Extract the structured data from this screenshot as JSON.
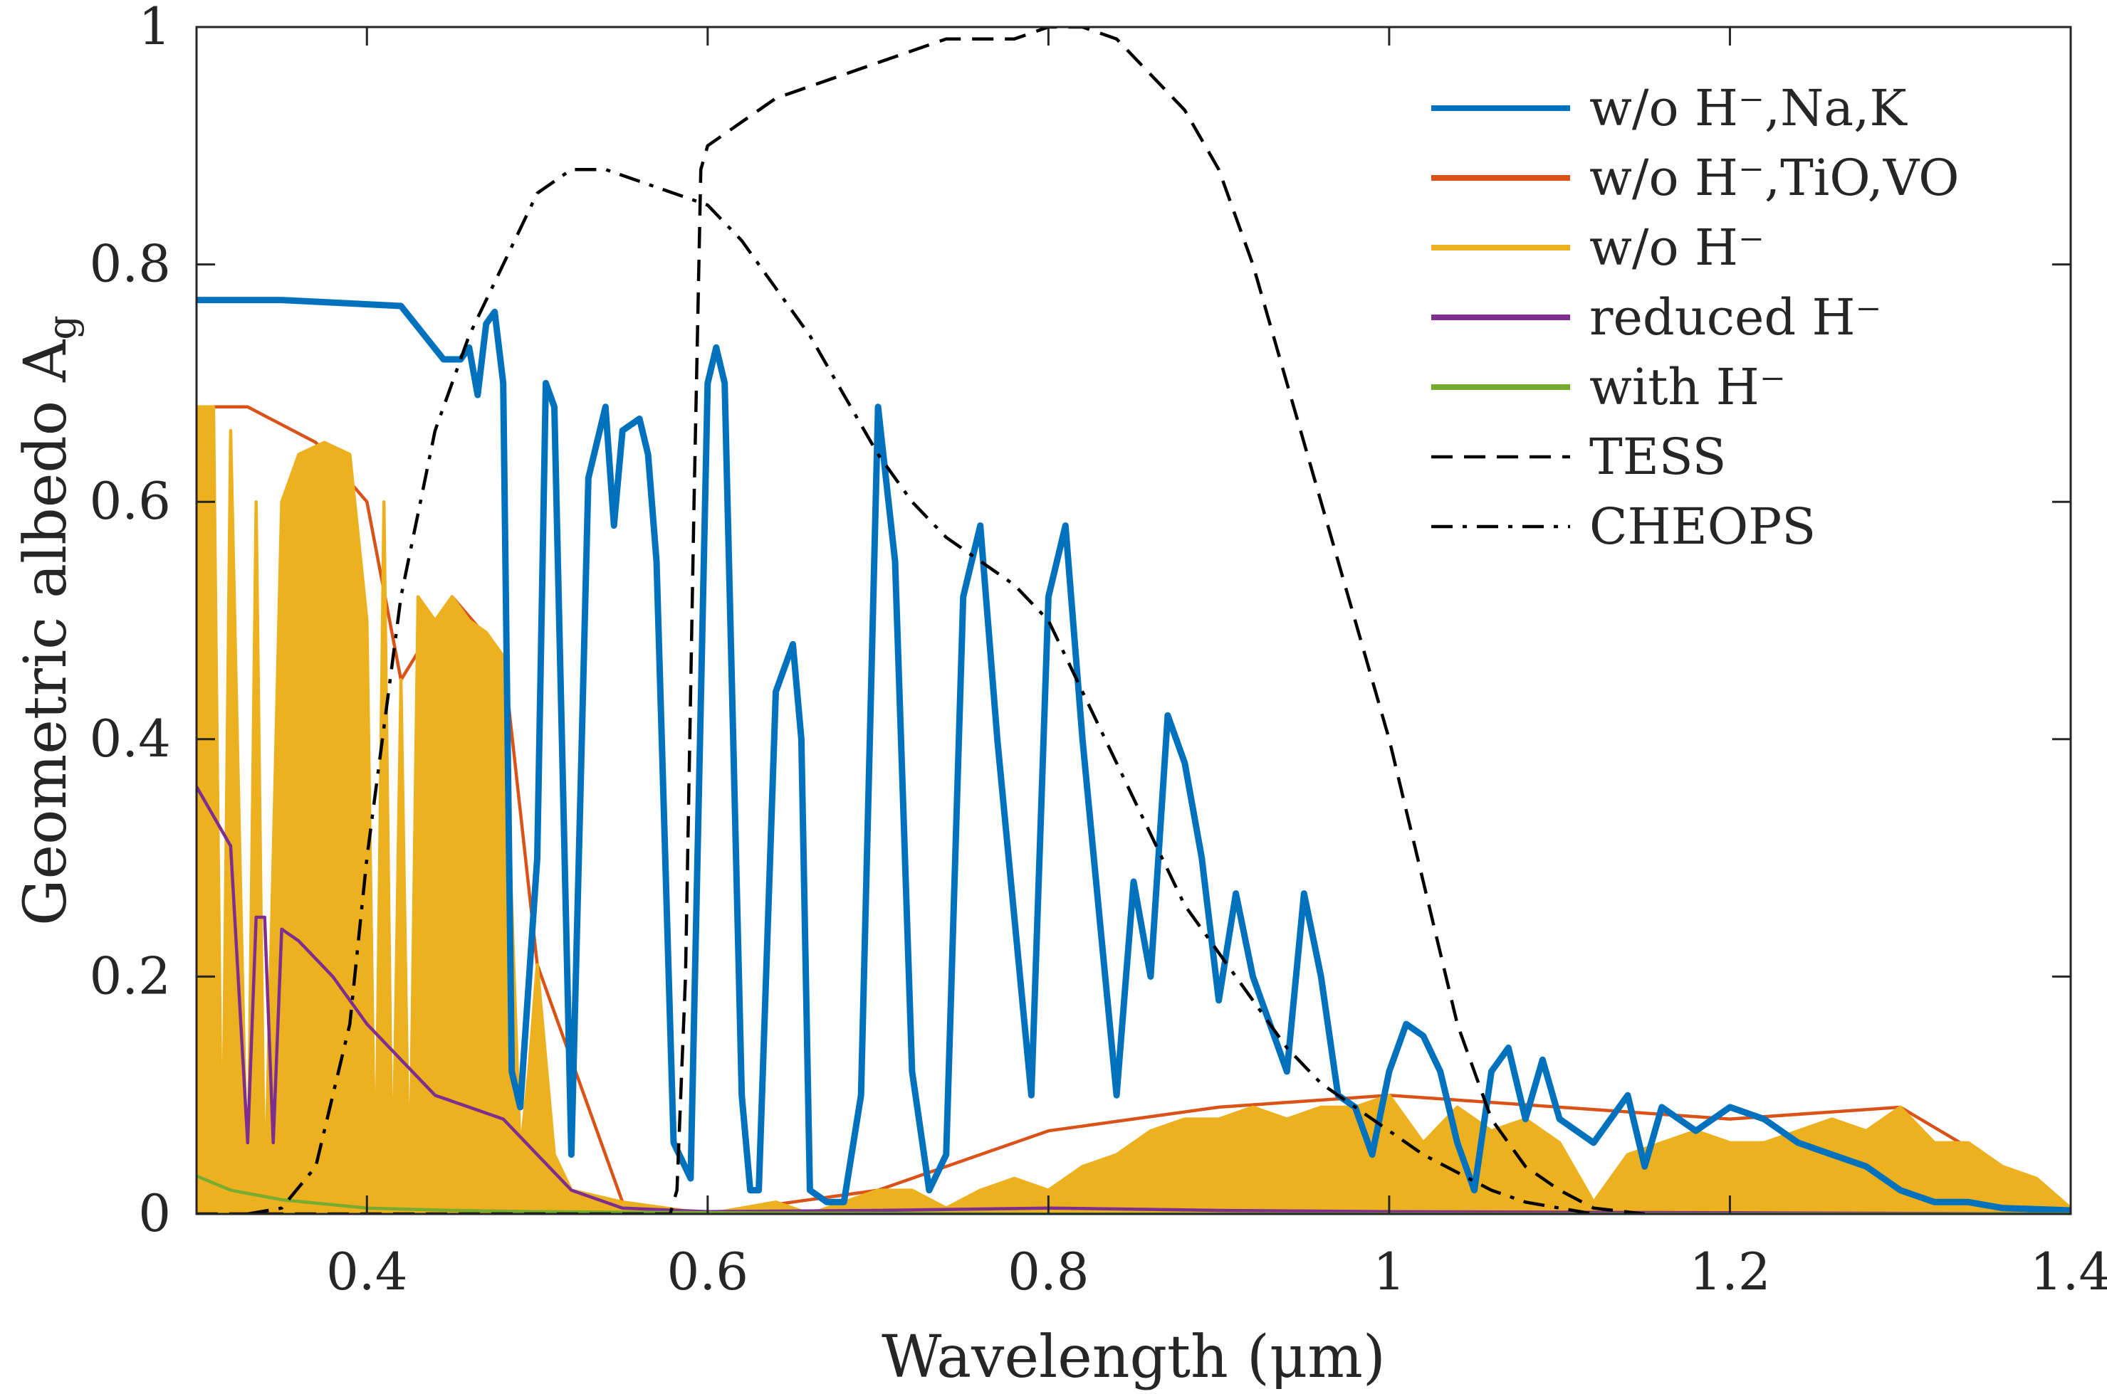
{
  "chart_data": {
    "type": "line",
    "title": "",
    "xlabel": "Wavelength (μm)",
    "ylabel": "Geometric albedo A",
    "ylabel_subscript": "g",
    "xlim": [
      0.3,
      1.4
    ],
    "ylim": [
      0,
      1
    ],
    "xticks": [
      0.4,
      0.6,
      0.8,
      1.0,
      1.2,
      1.4
    ],
    "xtick_labels": [
      "0.4",
      "0.6",
      "0.8",
      "1",
      "1.2",
      "1.4"
    ],
    "yticks": [
      0,
      0.2,
      0.4,
      0.6,
      0.8,
      1.0
    ],
    "ytick_labels": [
      "0",
      "0.2",
      "0.4",
      "0.6",
      "0.8",
      "1"
    ],
    "legend_position": "top-right",
    "series": [
      {
        "name": "w/o H⁻,Na,K",
        "color": "#0072BD",
        "style": "solid",
        "note": "dense molecular absorption forest; key peaks and troughs",
        "x": [
          0.3,
          0.35,
          0.42,
          0.445,
          0.455,
          0.46,
          0.465,
          0.47,
          0.475,
          0.48,
          0.485,
          0.49,
          0.5,
          0.505,
          0.51,
          0.52,
          0.53,
          0.54,
          0.545,
          0.55,
          0.56,
          0.565,
          0.57,
          0.58,
          0.59,
          0.6,
          0.605,
          0.61,
          0.62,
          0.625,
          0.63,
          0.64,
          0.65,
          0.655,
          0.66,
          0.67,
          0.68,
          0.69,
          0.7,
          0.71,
          0.72,
          0.73,
          0.74,
          0.75,
          0.76,
          0.77,
          0.78,
          0.79,
          0.8,
          0.81,
          0.82,
          0.83,
          0.84,
          0.85,
          0.86,
          0.87,
          0.88,
          0.89,
          0.9,
          0.91,
          0.92,
          0.93,
          0.94,
          0.95,
          0.96,
          0.97,
          0.98,
          0.99,
          1.0,
          1.01,
          1.02,
          1.03,
          1.04,
          1.05,
          1.06,
          1.07,
          1.08,
          1.09,
          1.1,
          1.12,
          1.14,
          1.15,
          1.16,
          1.18,
          1.2,
          1.22,
          1.24,
          1.26,
          1.28,
          1.3,
          1.32,
          1.34,
          1.36,
          1.38,
          1.4
        ],
        "y": [
          0.77,
          0.77,
          0.765,
          0.72,
          0.72,
          0.73,
          0.69,
          0.75,
          0.76,
          0.7,
          0.12,
          0.09,
          0.3,
          0.7,
          0.68,
          0.05,
          0.62,
          0.68,
          0.58,
          0.66,
          0.67,
          0.64,
          0.55,
          0.06,
          0.03,
          0.7,
          0.73,
          0.7,
          0.1,
          0.02,
          0.02,
          0.44,
          0.48,
          0.4,
          0.02,
          0.01,
          0.01,
          0.1,
          0.68,
          0.55,
          0.12,
          0.02,
          0.05,
          0.52,
          0.58,
          0.4,
          0.25,
          0.1,
          0.52,
          0.58,
          0.4,
          0.25,
          0.1,
          0.28,
          0.2,
          0.42,
          0.38,
          0.3,
          0.18,
          0.27,
          0.2,
          0.16,
          0.12,
          0.27,
          0.2,
          0.1,
          0.09,
          0.05,
          0.12,
          0.16,
          0.15,
          0.12,
          0.06,
          0.02,
          0.12,
          0.14,
          0.08,
          0.13,
          0.08,
          0.06,
          0.1,
          0.04,
          0.09,
          0.07,
          0.09,
          0.08,
          0.06,
          0.05,
          0.04,
          0.02,
          0.01,
          0.01,
          0.005,
          0.004,
          0.003
        ]
      },
      {
        "name": "w/o H⁻,TiO,VO",
        "color": "#D95319",
        "style": "solid",
        "note": "nearly identical to w/o H⁻ (drawn underneath)",
        "x": [
          0.3,
          0.33,
          0.37,
          0.4,
          0.42,
          0.45,
          0.48,
          0.5,
          0.55,
          0.6,
          0.7,
          0.8,
          0.9,
          1.0,
          1.1,
          1.2,
          1.3,
          1.4
        ],
        "y": [
          0.68,
          0.68,
          0.65,
          0.6,
          0.45,
          0.52,
          0.47,
          0.21,
          0.01,
          0.0,
          0.02,
          0.07,
          0.09,
          0.1,
          0.09,
          0.08,
          0.09,
          0.005
        ]
      },
      {
        "name": "w/o H⁻",
        "color": "#EDB120",
        "style": "solid",
        "x": [
          0.3,
          0.31,
          0.315,
          0.32,
          0.33,
          0.335,
          0.34,
          0.35,
          0.36,
          0.375,
          0.39,
          0.4,
          0.405,
          0.41,
          0.415,
          0.42,
          0.425,
          0.43,
          0.44,
          0.45,
          0.46,
          0.47,
          0.48,
          0.49,
          0.495,
          0.5,
          0.51,
          0.52,
          0.55,
          0.6,
          0.62,
          0.64,
          0.66,
          0.7,
          0.72,
          0.74,
          0.76,
          0.78,
          0.8,
          0.82,
          0.84,
          0.86,
          0.88,
          0.9,
          0.92,
          0.94,
          0.96,
          0.98,
          1.0,
          1.02,
          1.04,
          1.06,
          1.08,
          1.1,
          1.12,
          1.14,
          1.16,
          1.18,
          1.2,
          1.22,
          1.24,
          1.26,
          1.28,
          1.3,
          1.32,
          1.34,
          1.36,
          1.38,
          1.4
        ],
        "y": [
          0.68,
          0.68,
          0.0,
          0.66,
          0.0,
          0.6,
          0.0,
          0.6,
          0.64,
          0.65,
          0.64,
          0.5,
          0.0,
          0.6,
          0.0,
          0.45,
          0.0,
          0.52,
          0.5,
          0.52,
          0.5,
          0.49,
          0.47,
          0.05,
          0.12,
          0.21,
          0.05,
          0.02,
          0.01,
          0.0,
          0.005,
          0.01,
          0.0,
          0.02,
          0.02,
          0.005,
          0.02,
          0.03,
          0.02,
          0.04,
          0.05,
          0.07,
          0.08,
          0.08,
          0.09,
          0.08,
          0.09,
          0.09,
          0.1,
          0.06,
          0.09,
          0.07,
          0.08,
          0.06,
          0.01,
          0.05,
          0.06,
          0.07,
          0.06,
          0.06,
          0.07,
          0.08,
          0.07,
          0.09,
          0.06,
          0.06,
          0.04,
          0.03,
          0.005
        ]
      },
      {
        "name": "reduced H⁻",
        "color": "#7E2F8E",
        "style": "solid",
        "x": [
          0.3,
          0.32,
          0.33,
          0.335,
          0.34,
          0.345,
          0.35,
          0.36,
          0.38,
          0.4,
          0.42,
          0.44,
          0.46,
          0.48,
          0.5,
          0.52,
          0.55,
          0.6,
          0.7,
          0.8,
          0.9,
          1.0,
          1.2,
          1.4
        ],
        "y": [
          0.36,
          0.31,
          0.06,
          0.25,
          0.25,
          0.06,
          0.24,
          0.23,
          0.2,
          0.16,
          0.13,
          0.1,
          0.09,
          0.08,
          0.05,
          0.02,
          0.005,
          0.002,
          0.003,
          0.005,
          0.003,
          0.002,
          0.001,
          0.0
        ]
      },
      {
        "name": "with H⁻",
        "color": "#77AC30",
        "style": "solid",
        "x": [
          0.3,
          0.32,
          0.35,
          0.4,
          0.45,
          0.5,
          0.6,
          0.8,
          1.0,
          1.2,
          1.4
        ],
        "y": [
          0.032,
          0.02,
          0.012,
          0.005,
          0.003,
          0.002,
          0.001,
          0.0,
          0.0,
          0.0,
          0.0
        ]
      },
      {
        "name": "TESS",
        "color": "#000000",
        "style": "dashed",
        "x": [
          0.3,
          0.32,
          0.55,
          0.578,
          0.582,
          0.587,
          0.592,
          0.596,
          0.6,
          0.62,
          0.64,
          0.66,
          0.68,
          0.7,
          0.72,
          0.74,
          0.76,
          0.78,
          0.8,
          0.82,
          0.84,
          0.86,
          0.88,
          0.9,
          0.92,
          0.94,
          0.96,
          0.98,
          1.0,
          1.02,
          1.04,
          1.06,
          1.08,
          1.1,
          1.12,
          1.15
        ],
        "y": [
          0.0,
          0.0,
          0.0,
          0.0,
          0.02,
          0.2,
          0.6,
          0.88,
          0.9,
          0.92,
          0.94,
          0.95,
          0.96,
          0.97,
          0.98,
          0.99,
          0.99,
          0.99,
          1.0,
          1.0,
          0.99,
          0.96,
          0.93,
          0.88,
          0.8,
          0.7,
          0.6,
          0.5,
          0.4,
          0.28,
          0.16,
          0.08,
          0.04,
          0.02,
          0.005,
          0.0
        ]
      },
      {
        "name": "CHEOPS",
        "color": "#000000",
        "style": "dashdot",
        "x": [
          0.33,
          0.35,
          0.37,
          0.39,
          0.4,
          0.42,
          0.44,
          0.46,
          0.48,
          0.5,
          0.52,
          0.54,
          0.56,
          0.58,
          0.6,
          0.62,
          0.64,
          0.66,
          0.68,
          0.7,
          0.72,
          0.74,
          0.76,
          0.78,
          0.8,
          0.82,
          0.84,
          0.86,
          0.88,
          0.9,
          0.92,
          0.94,
          0.96,
          0.98,
          1.0,
          1.02,
          1.04,
          1.06,
          1.08,
          1.1,
          1.12
        ],
        "y": [
          0.0,
          0.005,
          0.04,
          0.16,
          0.3,
          0.52,
          0.66,
          0.74,
          0.8,
          0.86,
          0.88,
          0.88,
          0.87,
          0.86,
          0.85,
          0.82,
          0.78,
          0.74,
          0.69,
          0.64,
          0.6,
          0.57,
          0.55,
          0.53,
          0.5,
          0.44,
          0.38,
          0.32,
          0.26,
          0.22,
          0.18,
          0.14,
          0.11,
          0.09,
          0.07,
          0.05,
          0.035,
          0.02,
          0.01,
          0.005,
          0.0
        ]
      }
    ]
  }
}
